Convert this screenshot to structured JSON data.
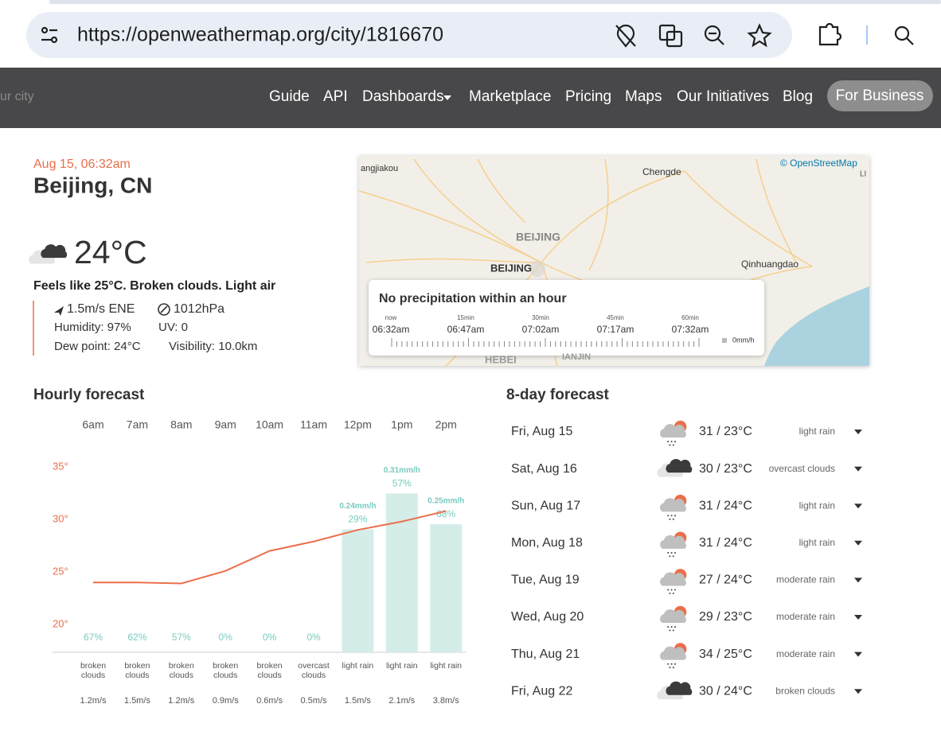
{
  "browser": {
    "url": "https://openweathermap.org/city/1816670"
  },
  "nav": {
    "search_placeholder": "ur city",
    "links": [
      "Guide",
      "API",
      "Dashboards",
      "Marketplace",
      "Pricing",
      "Maps",
      "Our Initiatives",
      "Blog"
    ],
    "business": "For Business"
  },
  "current": {
    "datetime": "Aug 15, 06:32am",
    "location": "Beijing, CN",
    "temperature": "24°C",
    "summary": "Feels like 25°C. Broken clouds. Light air",
    "wind": "1.5m/s ENE",
    "pressure": "1012hPa",
    "humidity": "Humidity: 97%",
    "uv": "UV: 0",
    "dew_point": "Dew point: 24°C",
    "visibility": "Visibility: 10.0km"
  },
  "map": {
    "attribution": "© OpenStreetMap",
    "places": [
      "angjiakou",
      "Chengde",
      "BEIJING",
      "BEIJING",
      "Qinhuangdao",
      "HEBEI",
      "IANJIN",
      "LI"
    ],
    "precipitation": {
      "title": "No precipitation within an hour",
      "offsets": [
        "now",
        "15min",
        "30min",
        "45min",
        "60min"
      ],
      "times": [
        "06:32am",
        "06:47am",
        "07:02am",
        "07:17am",
        "07:32am"
      ],
      "unit": "0mm/h"
    }
  },
  "hourly": {
    "title": "Hourly forecast",
    "hours": [
      "6am",
      "7am",
      "8am",
      "9am",
      "10am",
      "11am",
      "12pm",
      "1pm",
      "2pm"
    ],
    "yticks": [
      {
        "value": 35,
        "label": "35°"
      },
      {
        "value": 30,
        "label": "30°"
      },
      {
        "value": 25,
        "label": "25°"
      },
      {
        "value": 20,
        "label": "20°"
      }
    ],
    "temperatures": [
      24,
      24,
      23.9,
      25.1,
      27,
      27.9,
      29,
      29.8,
      30.8
    ],
    "precip_amounts": [
      0,
      0,
      0,
      0,
      0,
      0,
      0.24,
      0.31,
      0.25
    ],
    "precip_amount_labels": [
      null,
      null,
      null,
      null,
      null,
      null,
      "0.24mm/h",
      "0.31mm/h",
      "0.25mm/h"
    ],
    "precip_probability": [
      67,
      62,
      57,
      0,
      0,
      0,
      29,
      57,
      68
    ],
    "precip_probability_labels": [
      "67%",
      "62%",
      "57%",
      "0%",
      "0%",
      "0%",
      "29%",
      "57%",
      "68%"
    ],
    "conditions": [
      "broken clouds",
      "broken clouds",
      "broken clouds",
      "broken clouds",
      "broken clouds",
      "overcast clouds",
      "light rain",
      "light rain",
      "light rain"
    ],
    "wind": [
      "1.2m/s",
      "1.5m/s",
      "1.2m/s",
      "0.9m/s",
      "0.6m/s",
      "0.5m/s",
      "1.5m/s",
      "2.1m/s",
      "3.8m/s"
    ]
  },
  "daily": {
    "title": "8-day forecast",
    "days": [
      {
        "date": "Fri, Aug 15",
        "temps": "31 / 23°C",
        "description": "light rain"
      },
      {
        "date": "Sat, Aug 16",
        "temps": "30 / 23°C",
        "description": "overcast clouds"
      },
      {
        "date": "Sun, Aug 17",
        "temps": "31 / 24°C",
        "description": "light rain"
      },
      {
        "date": "Mon, Aug 18",
        "temps": "31 / 24°C",
        "description": "light rain"
      },
      {
        "date": "Tue, Aug 19",
        "temps": "27 / 24°C",
        "description": "moderate rain"
      },
      {
        "date": "Wed, Aug 20",
        "temps": "29 / 23°C",
        "description": "moderate rain"
      },
      {
        "date": "Thu, Aug 21",
        "temps": "34 / 25°C",
        "description": "moderate rain"
      },
      {
        "date": "Fri, Aug 22",
        "temps": "30 / 24°C",
        "description": "broken clouds"
      }
    ]
  }
}
